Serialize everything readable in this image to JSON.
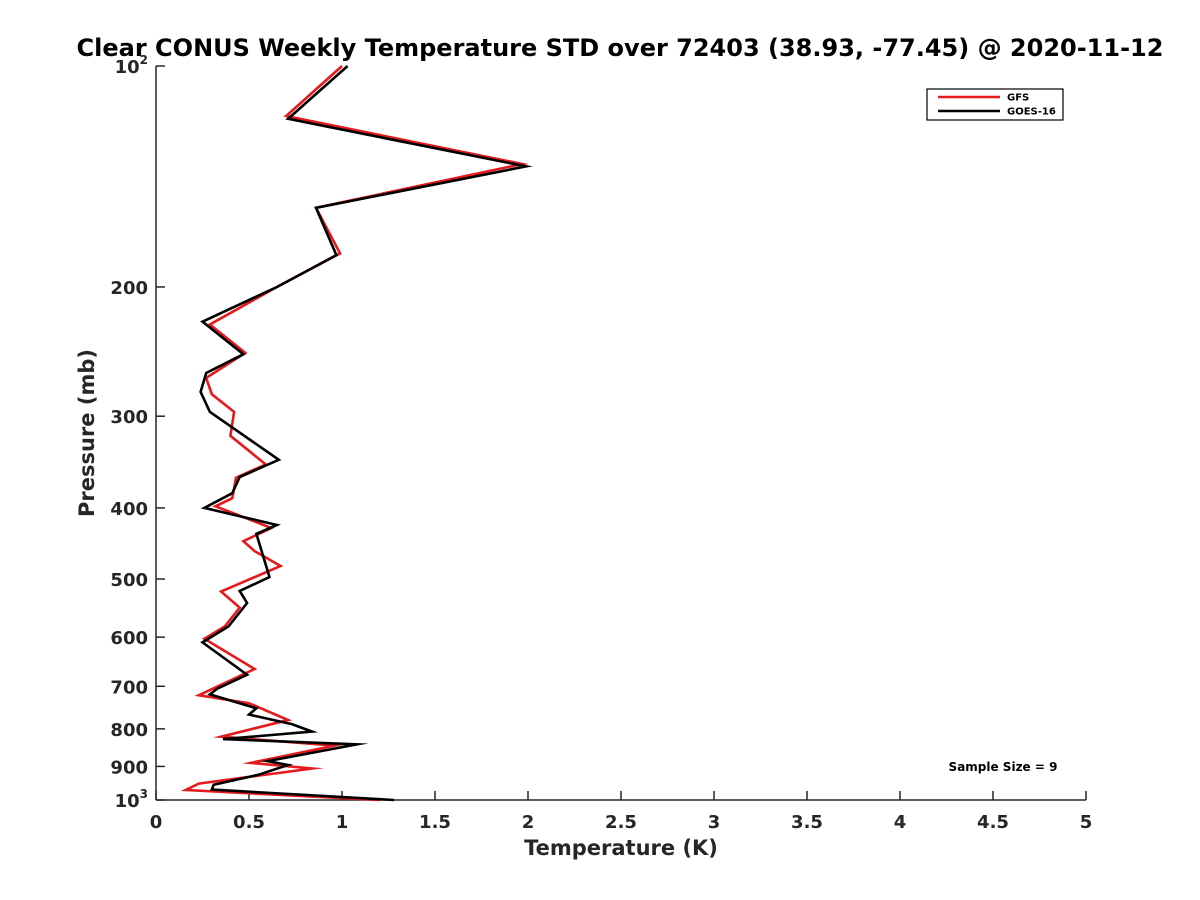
{
  "chart_data": {
    "type": "line",
    "title": "Clear CONUS Weekly Temperature STD over 72403 (38.93, -77.45) @ 2020-11-12",
    "xlabel": "Temperature (K)",
    "ylabel": "Pressure (mb)",
    "xlim": [
      0,
      5
    ],
    "ylim": [
      100,
      1000
    ],
    "y_scale": "log",
    "y_reversed": true,
    "grid": false,
    "legend_position": "top-right",
    "x_ticks": [
      {
        "value": 0,
        "label": "0"
      },
      {
        "value": 0.5,
        "label": "0.5"
      },
      {
        "value": 1,
        "label": "1"
      },
      {
        "value": 1.5,
        "label": "1.5"
      },
      {
        "value": 2,
        "label": "2"
      },
      {
        "value": 2.5,
        "label": "2.5"
      },
      {
        "value": 3,
        "label": "3"
      },
      {
        "value": 3.5,
        "label": "3.5"
      },
      {
        "value": 4,
        "label": "4"
      },
      {
        "value": 4.5,
        "label": "4.5"
      },
      {
        "value": 5,
        "label": "5"
      }
    ],
    "y_ticks": [
      {
        "value": 100,
        "label": "10",
        "exp": "2"
      },
      {
        "value": 200,
        "label": "200"
      },
      {
        "value": 300,
        "label": "300"
      },
      {
        "value": 400,
        "label": "400"
      },
      {
        "value": 500,
        "label": "500"
      },
      {
        "value": 600,
        "label": "600"
      },
      {
        "value": 700,
        "label": "700"
      },
      {
        "value": 800,
        "label": "800"
      },
      {
        "value": 900,
        "label": "900"
      },
      {
        "value": 1000,
        "label": "10",
        "exp": "3"
      }
    ],
    "annotation": "Sample Size = 9",
    "series": [
      {
        "name": "GFS",
        "color": "#e41a1c",
        "points": [
          [
            1.0,
            100
          ],
          [
            0.7,
            117
          ],
          [
            1.97,
            136
          ],
          [
            0.86,
            156
          ],
          [
            0.99,
            180
          ],
          [
            0.65,
            200
          ],
          [
            0.29,
            225
          ],
          [
            0.48,
            246
          ],
          [
            0.27,
            266
          ],
          [
            0.3,
            280
          ],
          [
            0.42,
            296
          ],
          [
            0.4,
            319
          ],
          [
            0.59,
            349
          ],
          [
            0.43,
            364
          ],
          [
            0.41,
            388
          ],
          [
            0.32,
            398
          ],
          [
            0.62,
            426
          ],
          [
            0.47,
            444
          ],
          [
            0.53,
            458
          ],
          [
            0.67,
            480
          ],
          [
            0.35,
            520
          ],
          [
            0.45,
            547
          ],
          [
            0.37,
            580
          ],
          [
            0.26,
            603
          ],
          [
            0.53,
            663
          ],
          [
            0.23,
            720
          ],
          [
            0.5,
            738
          ],
          [
            0.71,
            778
          ],
          [
            0.35,
            820
          ],
          [
            0.96,
            843
          ],
          [
            0.51,
            890
          ],
          [
            0.84,
            906
          ],
          [
            0.23,
            950
          ],
          [
            0.16,
            969
          ],
          [
            1.2,
            1000
          ]
        ]
      },
      {
        "name": "GOES-16",
        "color": "#000000",
        "points": [
          [
            1.03,
            100
          ],
          [
            0.71,
            118
          ],
          [
            1.99,
            137
          ],
          [
            0.86,
            156
          ],
          [
            0.97,
            181
          ],
          [
            0.65,
            200
          ],
          [
            0.25,
            223
          ],
          [
            0.47,
            247
          ],
          [
            0.27,
            262
          ],
          [
            0.24,
            278
          ],
          [
            0.29,
            296
          ],
          [
            0.66,
            344
          ],
          [
            0.45,
            363
          ],
          [
            0.41,
            382
          ],
          [
            0.26,
            400
          ],
          [
            0.65,
            422
          ],
          [
            0.54,
            434
          ],
          [
            0.61,
            497
          ],
          [
            0.45,
            519
          ],
          [
            0.49,
            539
          ],
          [
            0.39,
            580
          ],
          [
            0.25,
            610
          ],
          [
            0.49,
            675
          ],
          [
            0.33,
            705
          ],
          [
            0.29,
            718
          ],
          [
            0.54,
            750
          ],
          [
            0.5,
            765
          ],
          [
            0.73,
            788
          ],
          [
            0.84,
            807
          ],
          [
            0.36,
            826
          ],
          [
            1.08,
            840
          ],
          [
            0.6,
            885
          ],
          [
            0.71,
            896
          ],
          [
            0.55,
            924
          ],
          [
            0.31,
            953
          ],
          [
            0.3,
            968
          ],
          [
            1.28,
            1000
          ]
        ]
      }
    ]
  }
}
